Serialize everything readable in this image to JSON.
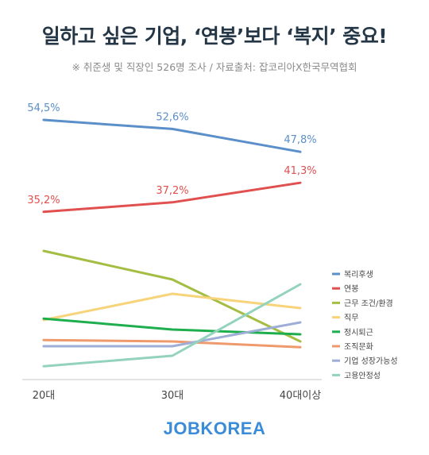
{
  "header": {
    "title": "일하고 싶은 기업, ‘연봉’보다 ‘복지’ 중요!",
    "subtitle": "※ 취준생 및 직장인 526명 조사 / 자료출처: 잡코리아X한국무역협회"
  },
  "brand": {
    "name": "JOBKOREA",
    "color": "#3a8bd8"
  },
  "chart_data": {
    "type": "line",
    "title": "",
    "xlabel": "",
    "ylabel": "",
    "categories": [
      "20대",
      "30대",
      "40대이상"
    ],
    "ylim": [
      0,
      60
    ],
    "grid": false,
    "legend_position": "right",
    "series": [
      {
        "name": "복리후생",
        "color": "#5b8fc9",
        "values": [
          54.5,
          52.6,
          47.8
        ],
        "labels": [
          "54,5%",
          "52,6%",
          "47,8%"
        ]
      },
      {
        "name": "연봉",
        "color": "#e0504f",
        "values": [
          35.2,
          37.2,
          41.3
        ],
        "labels": [
          "35,2%",
          "37,2%",
          "41,3%"
        ]
      },
      {
        "name": "근무 조건/환경",
        "color": "#a4bd43",
        "values": [
          27.0,
          21.0,
          8.0
        ],
        "labels": []
      },
      {
        "name": "직무",
        "color": "#f7d37a",
        "values": [
          12.5,
          18.0,
          15.0
        ],
        "labels": []
      },
      {
        "name": "정시퇴근",
        "color": "#1fae4e",
        "values": [
          12.8,
          10.5,
          9.5
        ],
        "labels": []
      },
      {
        "name": "조직문화",
        "color": "#ee9a6c",
        "values": [
          8.3,
          8.0,
          6.8
        ],
        "labels": []
      },
      {
        "name": "기업 성장가능성",
        "color": "#9eaed6",
        "values": [
          7.0,
          7.0,
          12.0
        ],
        "labels": []
      },
      {
        "name": "고용안정성",
        "color": "#93d3be",
        "values": [
          2.8,
          5.0,
          20.0
        ],
        "labels": []
      }
    ]
  }
}
